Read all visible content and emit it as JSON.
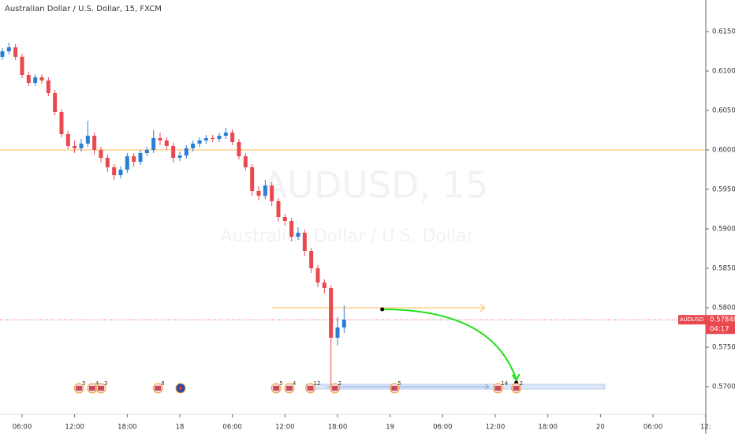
{
  "chart_data": {
    "type": "candlestick",
    "title": "Australian Dollar / U.S. Dollar, 15, FXCM",
    "watermark": "AUDUSD, 15",
    "watermark_subtitle": "Australian Dollar / U.S. Dollar",
    "symbol": "AUDUSD",
    "last_price": {
      "value": 0.57848,
      "label": "0.57848"
    },
    "countdown": "04:17",
    "up_color": "#2a7fd4",
    "down_color": "#e8484e",
    "x": [
      3.75,
      4.5,
      5.25,
      6,
      6.75,
      7.5,
      8.25,
      9,
      9.75,
      10.5,
      11.25,
      12,
      12.75,
      13.5,
      14.25,
      15,
      15.75,
      16.5,
      17.25,
      18,
      18.75,
      19.5,
      20.25,
      21,
      21.75,
      22.5,
      23.25,
      24,
      24.75,
      25.5,
      26.25,
      27,
      27.75,
      28.5,
      29.25,
      30,
      30.75,
      31.5,
      32.25,
      33,
      33.75,
      34.5,
      35.25,
      36,
      36.75,
      37.5,
      38.25,
      39,
      39.75,
      40.5,
      41.25,
      42,
      42.75
    ],
    "open": [
      0.6118,
      0.6125,
      0.613,
      0.6118,
      0.6095,
      0.6085,
      0.6092,
      0.6088,
      0.6072,
      0.6048,
      0.602,
      0.6005,
      0.6002,
      0.6008,
      0.6018,
      0.6,
      0.599,
      0.5978,
      0.5968,
      0.5975,
      0.5992,
      0.5985,
      0.5996,
      0.6,
      0.6015,
      0.6012,
      0.6005,
      0.599,
      0.5993,
      0.6002,
      0.6008,
      0.6012,
      0.6015,
      0.6014,
      0.6018,
      0.6022,
      0.601,
      0.5992,
      0.5978,
      0.5948,
      0.5942,
      0.5955,
      0.5935,
      0.5915,
      0.591,
      0.589,
      0.5895,
      0.5872,
      0.585,
      0.5832,
      0.5825,
      0.5762,
      0.5775
    ],
    "high": [
      0.6129,
      0.6136,
      0.6134,
      0.6122,
      0.6099,
      0.6096,
      0.6096,
      0.6092,
      0.6076,
      0.6052,
      0.6024,
      0.6012,
      0.6014,
      0.6037,
      0.6022,
      0.6004,
      0.5994,
      0.5982,
      0.5979,
      0.5996,
      0.5996,
      0.6,
      0.6004,
      0.6025,
      0.6022,
      0.6016,
      0.6009,
      0.5998,
      0.6006,
      0.6012,
      0.6016,
      0.6019,
      0.6019,
      0.6022,
      0.6028,
      0.6026,
      0.6014,
      0.5996,
      0.5982,
      0.5954,
      0.5962,
      0.5959,
      0.5939,
      0.5919,
      0.5914,
      0.5902,
      0.5899,
      0.5876,
      0.5854,
      0.5836,
      0.5829,
      0.5788,
      0.5803
    ],
    "low": [
      0.6114,
      0.6121,
      0.6114,
      0.6091,
      0.6081,
      0.6081,
      0.6084,
      0.6068,
      0.6044,
      0.6016,
      0.6001,
      0.5996,
      0.5998,
      0.6004,
      0.5994,
      0.5984,
      0.5972,
      0.5962,
      0.5964,
      0.5971,
      0.5979,
      0.5981,
      0.5992,
      0.5996,
      0.6006,
      0.6,
      0.5984,
      0.5986,
      0.5989,
      0.5998,
      0.6004,
      0.6008,
      0.601,
      0.601,
      0.6014,
      0.6006,
      0.5988,
      0.5974,
      0.5942,
      0.5936,
      0.5938,
      0.5929,
      0.5909,
      0.5904,
      0.5884,
      0.5886,
      0.5866,
      0.5844,
      0.5826,
      0.5818,
      0.5702,
      0.5752,
      0.5768
    ],
    "close": [
      0.6125,
      0.613,
      0.6118,
      0.6095,
      0.6085,
      0.6092,
      0.6088,
      0.6072,
      0.6048,
      0.602,
      0.6005,
      0.6002,
      0.6008,
      0.6018,
      0.6,
      0.599,
      0.5978,
      0.5968,
      0.5975,
      0.5992,
      0.5985,
      0.5996,
      0.6,
      0.6015,
      0.6012,
      0.6005,
      0.599,
      0.5993,
      0.6002,
      0.6008,
      0.6012,
      0.6015,
      0.6014,
      0.6018,
      0.6022,
      0.601,
      0.5992,
      0.5978,
      0.5948,
      0.5942,
      0.5955,
      0.5935,
      0.5915,
      0.591,
      0.589,
      0.5895,
      0.5872,
      0.585,
      0.5832,
      0.5825,
      0.5762,
      0.5775,
      0.57848
    ],
    "xlim": [
      3.48,
      84.03
    ],
    "ylim": [
      0.5665,
      0.619
    ],
    "xticks": [
      {
        "value": 6,
        "label": "06:00"
      },
      {
        "value": 12,
        "label": "12:00"
      },
      {
        "value": 18,
        "label": "18:00"
      },
      {
        "value": 24,
        "label": "18"
      },
      {
        "value": 30,
        "label": "06:00"
      },
      {
        "value": 36,
        "label": "12:00"
      },
      {
        "value": 42,
        "label": "18:00"
      },
      {
        "value": 48,
        "label": "19"
      },
      {
        "value": 54,
        "label": "06:00"
      },
      {
        "value": 60,
        "label": "12:00"
      },
      {
        "value": 66,
        "label": "18:00"
      },
      {
        "value": 72,
        "label": "20"
      },
      {
        "value": 78,
        "label": "06:00"
      },
      {
        "value": 84,
        "label": "12:"
      }
    ],
    "yticks": [
      {
        "value": 0.57,
        "label": "0.57000"
      },
      {
        "value": 0.575,
        "label": "0.57500"
      },
      {
        "value": 0.58,
        "label": "0.58000"
      },
      {
        "value": 0.585,
        "label": "0.58500"
      },
      {
        "value": 0.59,
        "label": "0.59000"
      },
      {
        "value": 0.595,
        "label": "0.59500"
      },
      {
        "value": 0.6,
        "label": "0.60000"
      },
      {
        "value": 0.605,
        "label": "0.60500"
      },
      {
        "value": 0.61,
        "label": "0.61000"
      },
      {
        "value": 0.615,
        "label": "0.61500"
      }
    ],
    "resistance": {
      "price": 0.6,
      "color": "#ffb74d"
    },
    "entry_arrow": {
      "price": 0.58,
      "start": 34.5,
      "end": 58.8,
      "color": "#ffb74d"
    },
    "target_zone": {
      "price": 0.57,
      "start": 38.4,
      "end": 72.5,
      "arrow_start": 40.8,
      "arrow_end": 59.3,
      "color": "#7fa6e0"
    },
    "projection": {
      "start": [
        47.1,
        0.5798
      ],
      "end": [
        62.4,
        0.5705
      ],
      "color": "#22e01c"
    },
    "events": [
      {
        "time": 12.5,
        "label": "5"
      },
      {
        "time": 14,
        "label": "4"
      },
      {
        "time": 15,
        "label": "3"
      },
      {
        "time": 21.5,
        "label": "8"
      },
      {
        "time": 35,
        "label": "5"
      },
      {
        "time": 36.5,
        "label": "4"
      },
      {
        "time": 38.9,
        "label": "12"
      },
      {
        "time": 41.7,
        "label": "2"
      },
      {
        "time": 48.5,
        "label": "5"
      },
      {
        "time": 60.3,
        "label": "14"
      },
      {
        "time": 62.4,
        "label": "2"
      }
    ]
  }
}
